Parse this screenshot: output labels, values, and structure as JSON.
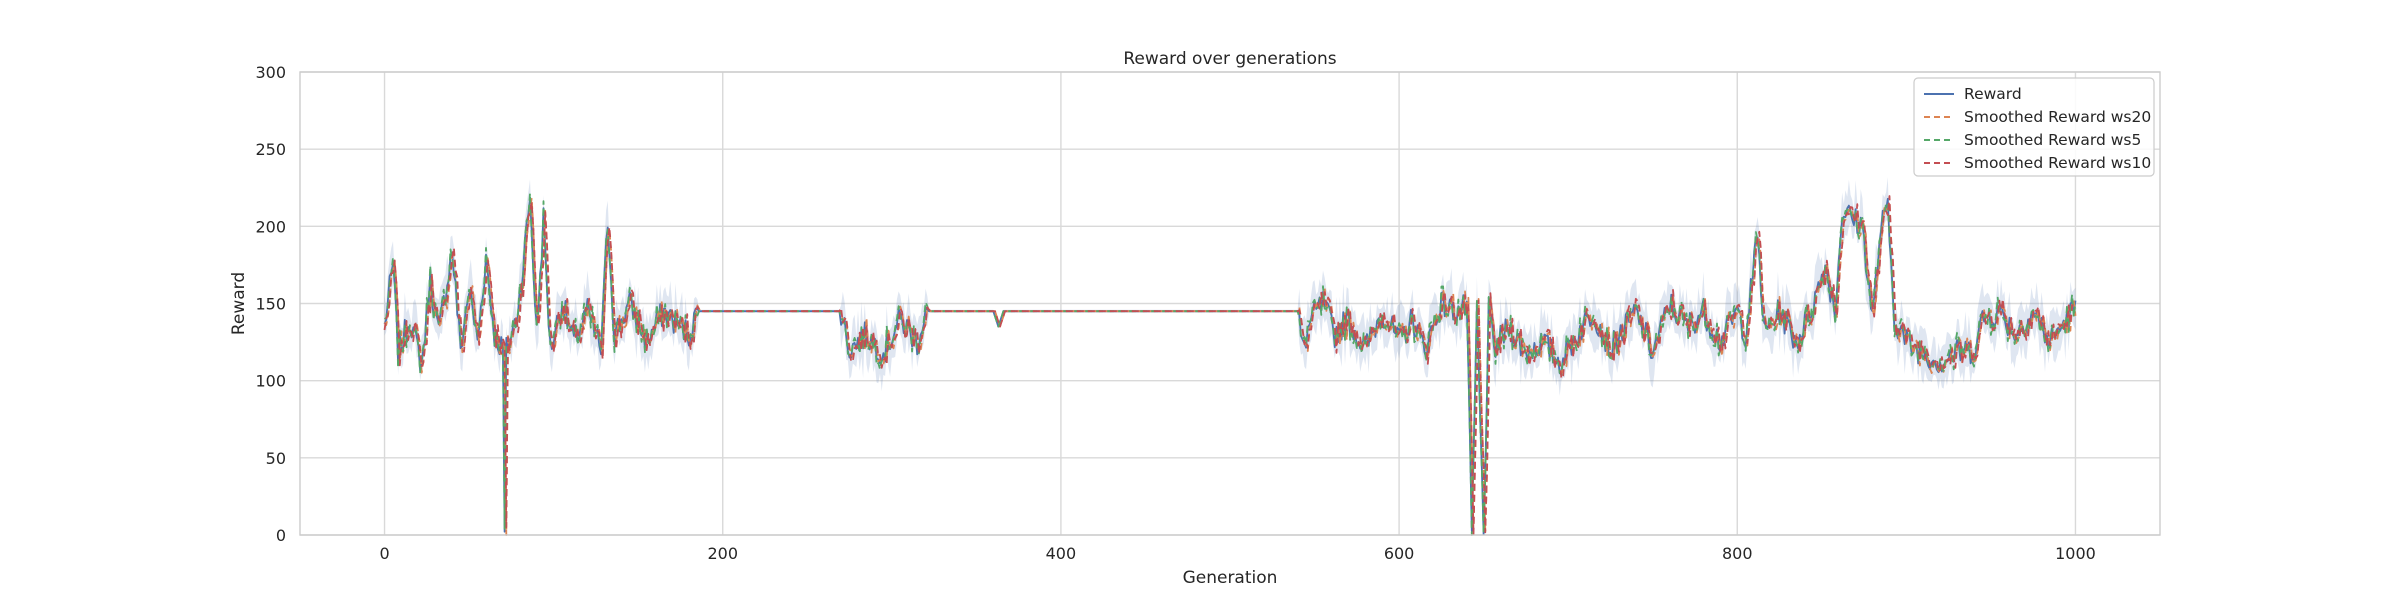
{
  "chart_data": {
    "type": "line",
    "title": "Reward over generations",
    "xlabel": "Generation",
    "ylabel": "Reward",
    "xlim": [
      -50,
      1050
    ],
    "ylim": [
      0,
      300
    ],
    "xticks": [
      0,
      200,
      400,
      600,
      800,
      1000
    ],
    "yticks": [
      0,
      50,
      100,
      150,
      200,
      250,
      300
    ],
    "grid": true,
    "legend_position": "top-right",
    "series": [
      {
        "name": "Reward",
        "color": "#4c72b0",
        "style": "solid"
      },
      {
        "name": "Smoothed Reward ws20",
        "color": "#dd8452",
        "style": "dashed"
      },
      {
        "name": "Smoothed Reward ws5",
        "color": "#55a868",
        "style": "dashed"
      },
      {
        "name": "Smoothed Reward ws10",
        "color": "#c44e52",
        "style": "dashed"
      }
    ],
    "keypoints": [
      [
        0,
        135
      ],
      [
        5,
        175
      ],
      [
        8,
        118
      ],
      [
        15,
        140
      ],
      [
        22,
        110
      ],
      [
        27,
        165
      ],
      [
        32,
        130
      ],
      [
        40,
        185
      ],
      [
        45,
        120
      ],
      [
        50,
        160
      ],
      [
        55,
        125
      ],
      [
        60,
        180
      ],
      [
        65,
        130
      ],
      [
        70,
        120
      ],
      [
        71,
        0
      ],
      [
        72,
        120
      ],
      [
        78,
        140
      ],
      [
        82,
        175
      ],
      [
        86,
        220
      ],
      [
        90,
        130
      ],
      [
        94,
        205
      ],
      [
        98,
        120
      ],
      [
        105,
        150
      ],
      [
        112,
        125
      ],
      [
        120,
        145
      ],
      [
        128,
        120
      ],
      [
        132,
        205
      ],
      [
        136,
        130
      ],
      [
        145,
        150
      ],
      [
        155,
        125
      ],
      [
        165,
        145
      ],
      [
        180,
        130
      ],
      [
        185,
        145
      ],
      [
        270,
        145
      ],
      [
        275,
        120
      ],
      [
        285,
        130
      ],
      [
        295,
        118
      ],
      [
        305,
        140
      ],
      [
        315,
        125
      ],
      [
        320,
        145
      ],
      [
        360,
        145
      ],
      [
        363,
        135
      ],
      [
        366,
        145
      ],
      [
        540,
        145
      ],
      [
        543,
        120
      ],
      [
        548,
        140
      ],
      [
        555,
        150
      ],
      [
        562,
        130
      ],
      [
        570,
        140
      ],
      [
        580,
        120
      ],
      [
        590,
        145
      ],
      [
        600,
        125
      ],
      [
        608,
        140
      ],
      [
        615,
        120
      ],
      [
        625,
        150
      ],
      [
        635,
        145
      ],
      [
        640,
        148
      ],
      [
        643,
        0
      ],
      [
        646,
        145
      ],
      [
        650,
        0
      ],
      [
        653,
        145
      ],
      [
        656,
        120
      ],
      [
        665,
        135
      ],
      [
        675,
        118
      ],
      [
        685,
        125
      ],
      [
        695,
        112
      ],
      [
        705,
        130
      ],
      [
        715,
        145
      ],
      [
        725,
        120
      ],
      [
        740,
        145
      ],
      [
        750,
        118
      ],
      [
        760,
        150
      ],
      [
        770,
        135
      ],
      [
        780,
        145
      ],
      [
        790,
        125
      ],
      [
        800,
        145
      ],
      [
        805,
        130
      ],
      [
        812,
        195
      ],
      [
        816,
        130
      ],
      [
        825,
        145
      ],
      [
        835,
        125
      ],
      [
        845,
        150
      ],
      [
        852,
        175
      ],
      [
        858,
        145
      ],
      [
        862,
        210
      ],
      [
        868,
        205
      ],
      [
        874,
        200
      ],
      [
        880,
        140
      ],
      [
        885,
        200
      ],
      [
        889,
        210
      ],
      [
        893,
        140
      ],
      [
        900,
        125
      ],
      [
        910,
        118
      ],
      [
        920,
        112
      ],
      [
        930,
        118
      ],
      [
        940,
        120
      ],
      [
        945,
        140
      ],
      [
        955,
        145
      ],
      [
        965,
        130
      ],
      [
        975,
        145
      ],
      [
        985,
        125
      ],
      [
        995,
        140
      ],
      [
        1000,
        148
      ]
    ]
  }
}
